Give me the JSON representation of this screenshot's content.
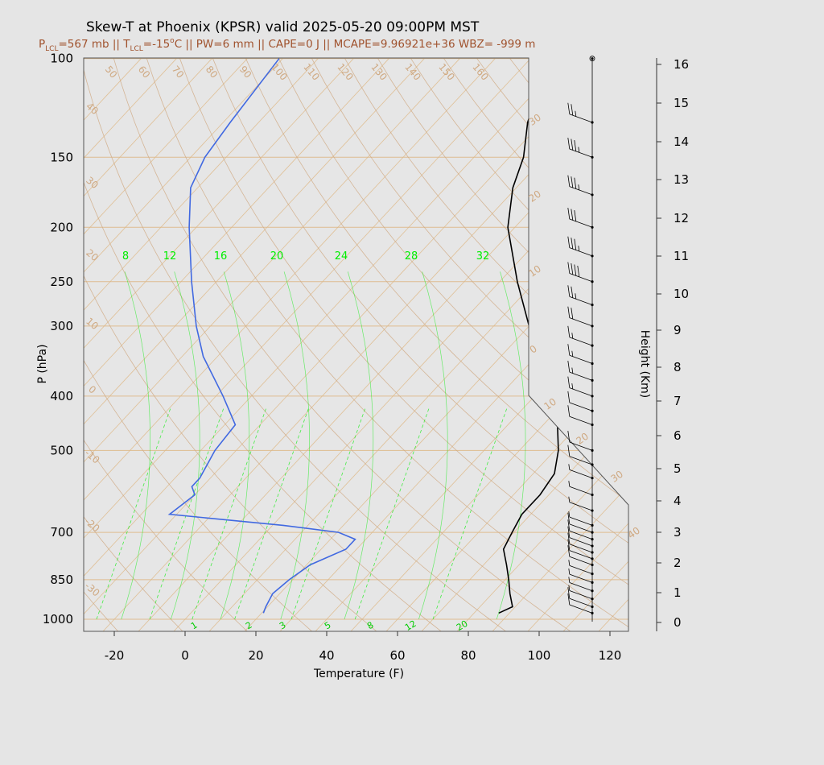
{
  "title": "Skew-T at Phoenix (KPSR) valid 2025-05-20 09:00PM MST",
  "subtitle": "P_LCL=567 mb || T_LCL=-15°C || PW=6 mm || CAPE=0 J || MCAPE=9.96921e+36 WBZ= -999 m",
  "subtitle_parts": {
    "p": "P",
    "p_sub": "LCL",
    "p_val": "=567 mb || T",
    "t_sub": "LCL",
    "t_val": "=-15",
    "deg": "o",
    "rest": "C || PW=6 mm || CAPE=0 J || MCAPE=9.96921e+36 WBZ= -999 m"
  },
  "colors": {
    "background": "#e5e5e5",
    "plot_bg": "#e6e6e6",
    "temperature": "#000000",
    "dewpoint": "#4169e1",
    "isotherm": "#deb887",
    "dry_adiabat": "#cfa982",
    "mixing_ratio": "#00ee00",
    "subtitle": "#a0522d"
  },
  "chart_data": {
    "type": "line",
    "xlabel": "Temperature (F)",
    "ylabel": "P (hPa)",
    "y2label": "Height (Km)",
    "x_ticks": [
      "-20",
      "0",
      "20",
      "40",
      "60",
      "80",
      "100",
      "120"
    ],
    "x_tick_values": [
      -20,
      0,
      20,
      40,
      60,
      80,
      100,
      120
    ],
    "p_ticks": [
      "100",
      "150",
      "200",
      "250",
      "300",
      "400",
      "500",
      "700",
      "850",
      "1000"
    ],
    "p_tick_values": [
      100,
      150,
      200,
      250,
      300,
      400,
      500,
      700,
      850,
      1000
    ],
    "height_ticks": [
      "0",
      "1",
      "2",
      "3",
      "4",
      "5",
      "6",
      "7",
      "8",
      "9",
      "10",
      "11",
      "12",
      "13",
      "14",
      "15",
      "16"
    ],
    "isotherm_labels": [
      "50",
      "60",
      "70",
      "80",
      "90",
      "100",
      "110",
      "120",
      "130",
      "140",
      "150",
      "160"
    ],
    "adiabat_labels_left": [
      "40",
      "30",
      "20",
      "10",
      "0",
      "-10",
      "-20",
      "-30"
    ],
    "adiabat_labels_right": [
      "30",
      "20",
      "10",
      "0",
      "10",
      "20",
      "30",
      "40"
    ],
    "mixing_ratio_top_labels": [
      "8",
      "12",
      "16",
      "20",
      "24",
      "28",
      "32"
    ],
    "mixing_ratio_bottom_labels": [
      "1",
      "2",
      "3",
      "5",
      "8",
      "12",
      "20"
    ],
    "series": [
      {
        "role": "temperature",
        "points": [
          {
            "p": 975,
            "t": 87.0
          },
          {
            "p": 950,
            "t": 89.2
          },
          {
            "p": 900,
            "t": 85.0
          },
          {
            "p": 850,
            "t": 81.0
          },
          {
            "p": 800,
            "t": 76.5
          },
          {
            "p": 750,
            "t": 71.5
          },
          {
            "p": 700,
            "t": 69.5
          },
          {
            "p": 650,
            "t": 67.5
          },
          {
            "p": 600,
            "t": 67.5
          },
          {
            "p": 550,
            "t": 66.0
          },
          {
            "p": 500,
            "t": 61.0
          },
          {
            "p": 450,
            "t": 54.0
          },
          {
            "p": 400,
            "t": 44.0
          },
          {
            "p": 350,
            "t": 32.0
          },
          {
            "p": 300,
            "t": 20.0
          },
          {
            "p": 250,
            "t": 5.0
          },
          {
            "p": 200,
            "t": -12.0
          },
          {
            "p": 170,
            "t": -21.0
          },
          {
            "p": 150,
            "t": -26.0
          },
          {
            "p": 130,
            "t": -34.0
          },
          {
            "p": 100,
            "t": -45.0
          }
        ]
      },
      {
        "role": "dewpoint",
        "points": [
          {
            "p": 975,
            "t": 20.5
          },
          {
            "p": 950,
            "t": 19.5
          },
          {
            "p": 900,
            "t": 18.0
          },
          {
            "p": 850,
            "t": 19.0
          },
          {
            "p": 800,
            "t": 21.0
          },
          {
            "p": 750,
            "t": 27.0
          },
          {
            "p": 720,
            "t": 27.0
          },
          {
            "p": 700,
            "t": 20.5
          },
          {
            "p": 680,
            "t": 3.0
          },
          {
            "p": 650,
            "t": -32.0
          },
          {
            "p": 600,
            "t": -30.0
          },
          {
            "p": 580,
            "t": -33.0
          },
          {
            "p": 560,
            "t": -33.0
          },
          {
            "p": 500,
            "t": -36.0
          },
          {
            "p": 450,
            "t": -37.0
          },
          {
            "p": 400,
            "t": -48.0
          },
          {
            "p": 340,
            "t": -64.0
          },
          {
            "p": 300,
            "t": -74.0
          },
          {
            "p": 250,
            "t": -87.0
          },
          {
            "p": 200,
            "t": -102.0
          },
          {
            "p": 170,
            "t": -112.0
          },
          {
            "p": 150,
            "t": -116.0
          },
          {
            "p": 130,
            "t": -118.0
          },
          {
            "p": 100,
            "t": -121.0
          }
        ]
      }
    ],
    "wind_barbs": [
      {
        "p": 100,
        "speed": 0
      },
      {
        "p": 130,
        "speed": 25
      },
      {
        "p": 150,
        "speed": 35
      },
      {
        "p": 175,
        "speed": 35
      },
      {
        "p": 200,
        "speed": 30
      },
      {
        "p": 225,
        "speed": 35
      },
      {
        "p": 250,
        "speed": 40
      },
      {
        "p": 275,
        "speed": 25
      },
      {
        "p": 300,
        "speed": 20
      },
      {
        "p": 325,
        "speed": 15
      },
      {
        "p": 350,
        "speed": 15
      },
      {
        "p": 375,
        "speed": 15
      },
      {
        "p": 400,
        "speed": 15
      },
      {
        "p": 425,
        "speed": 10
      },
      {
        "p": 450,
        "speed": 10
      },
      {
        "p": 500,
        "speed": 10
      },
      {
        "p": 530,
        "speed": 10
      },
      {
        "p": 560,
        "speed": 5
      },
      {
        "p": 600,
        "speed": 5
      },
      {
        "p": 640,
        "speed": 5
      },
      {
        "p": 680,
        "speed": 5
      },
      {
        "p": 700,
        "speed": 10
      },
      {
        "p": 720,
        "speed": 10
      },
      {
        "p": 740,
        "speed": 10
      },
      {
        "p": 760,
        "speed": 10
      },
      {
        "p": 780,
        "speed": 10
      },
      {
        "p": 800,
        "speed": 10
      },
      {
        "p": 830,
        "speed": 5
      },
      {
        "p": 860,
        "speed": 5
      },
      {
        "p": 890,
        "speed": 5
      },
      {
        "p": 920,
        "speed": 5
      },
      {
        "p": 950,
        "speed": 10
      },
      {
        "p": 975,
        "speed": 10
      }
    ]
  }
}
